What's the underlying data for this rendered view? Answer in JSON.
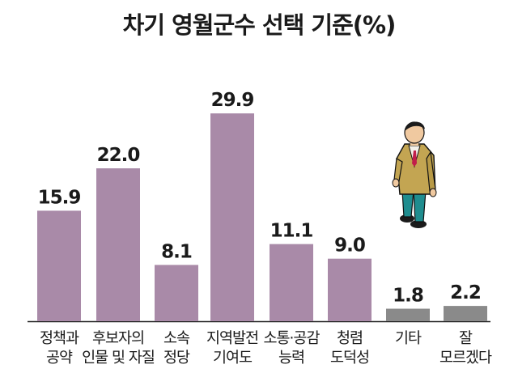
{
  "chart_data": {
    "type": "bar",
    "title": "차기 영월군수 선택 기준(%)",
    "categories": [
      [
        "정책과",
        "공약"
      ],
      [
        "후보자의",
        "인물 및 자질"
      ],
      [
        "소속",
        "정당"
      ],
      [
        "지역발전",
        "기여도"
      ],
      [
        "소통·공감",
        "능력"
      ],
      [
        "청렴",
        "도덕성"
      ],
      [
        "기타"
      ],
      [
        "잘",
        "모르겠다"
      ]
    ],
    "values": [
      15.9,
      22.0,
      8.1,
      29.9,
      11.1,
      9.0,
      1.8,
      2.2
    ],
    "value_labels": [
      "15.9",
      "22.0",
      "8.1",
      "29.9",
      "11.1",
      "9.0",
      "1.8",
      "2.2"
    ],
    "bar_colors": [
      "#a98aa8",
      "#a98aa8",
      "#a98aa8",
      "#a98aa8",
      "#a98aa8",
      "#a98aa8",
      "#8a8a8a",
      "#8a8a8a"
    ],
    "grid": false,
    "legend": "none",
    "illustration": "person-standing-icon"
  }
}
